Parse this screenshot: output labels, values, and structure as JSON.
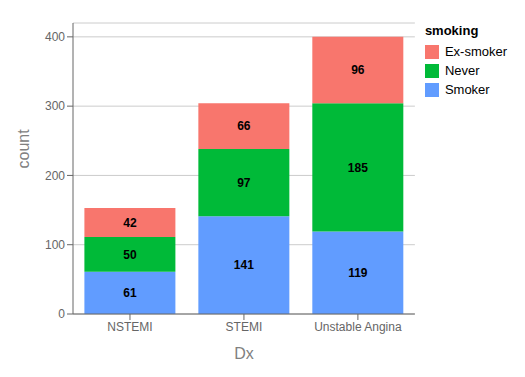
{
  "chart_data": {
    "type": "bar",
    "stacked": true,
    "categories": [
      "NSTEMI",
      "STEMI",
      "Unstable Angina"
    ],
    "series": [
      {
        "name": "Smoker",
        "color": "#619CFF",
        "values": [
          61,
          141,
          119
        ]
      },
      {
        "name": "Never",
        "color": "#00BA38",
        "values": [
          50,
          97,
          185
        ]
      },
      {
        "name": "Ex-smoker",
        "color": "#F8766D",
        "values": [
          42,
          66,
          96
        ]
      }
    ],
    "xlabel": "Dx",
    "ylabel": "count",
    "ylim": [
      0,
      420
    ],
    "yticks": [
      0,
      100,
      200,
      300,
      400
    ],
    "grid": true,
    "legend": "right",
    "legend_title": "smoking",
    "data_labels": true
  }
}
